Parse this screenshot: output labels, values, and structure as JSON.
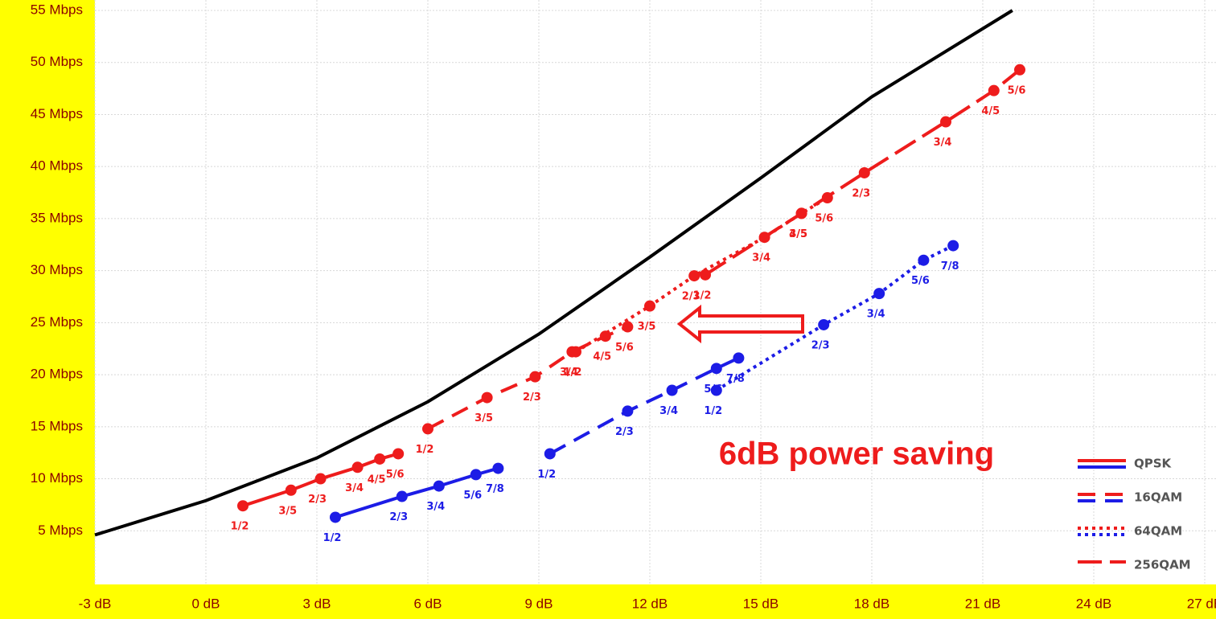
{
  "chart_data": {
    "type": "line",
    "annotation": "6dB power saving",
    "xlim": [
      -3,
      27
    ],
    "ylim": [
      0,
      55
    ],
    "xticks": [
      {
        "value": -3,
        "label": "-3 dB"
      },
      {
        "value": 0,
        "label": "0 dB"
      },
      {
        "value": 3,
        "label": "3 dB"
      },
      {
        "value": 6,
        "label": "6 dB"
      },
      {
        "value": 9,
        "label": "9 dB"
      },
      {
        "value": 12,
        "label": "12 dB"
      },
      {
        "value": 15,
        "label": "15 dB"
      },
      {
        "value": 18,
        "label": "18 dB"
      },
      {
        "value": 21,
        "label": "21 dB"
      },
      {
        "value": 24,
        "label": "24 dB"
      },
      {
        "value": 27,
        "label": "27 dB"
      }
    ],
    "yticks": [
      {
        "value": 5,
        "label": "5 Mbps"
      },
      {
        "value": 10,
        "label": "10 Mbps"
      },
      {
        "value": 15,
        "label": "15 Mbps"
      },
      {
        "value": 20,
        "label": "20 Mbps"
      },
      {
        "value": 25,
        "label": "25 Mbps"
      },
      {
        "value": 30,
        "label": "30 Mbps"
      },
      {
        "value": 35,
        "label": "35 Mbps"
      },
      {
        "value": 40,
        "label": "40 Mbps"
      },
      {
        "value": 45,
        "label": "45 Mbps"
      },
      {
        "value": 50,
        "label": "50 Mbps"
      },
      {
        "value": 55,
        "label": "55 Mbps"
      }
    ],
    "grid": true,
    "legend_position": "lower right",
    "series": [
      {
        "color": "#000000",
        "dash": "solid",
        "markers": false,
        "x": [
          -3,
          0,
          3,
          6,
          9,
          12,
          15,
          18,
          21.8
        ],
        "values": [
          4.6,
          7.9,
          12,
          17.4,
          23.9,
          31.3,
          38.9,
          46.7,
          55
        ]
      },
      {
        "name": "QPSK",
        "color": "#ee1c1c",
        "dash": "solid",
        "markers": true,
        "x": [
          1.0,
          2.3,
          3.1,
          4.1,
          4.7,
          5.2
        ],
        "values": [
          7.4,
          8.9,
          10.0,
          11.1,
          11.9,
          12.4
        ],
        "point_labels": [
          "1/2",
          "3/5",
          "2/3",
          "3/4",
          "4/5",
          "5/6"
        ]
      },
      {
        "name": "QPSK",
        "color": "#1c1ce6",
        "dash": "solid",
        "markers": true,
        "x": [
          3.5,
          5.3,
          6.3,
          7.3,
          7.9
        ],
        "values": [
          6.3,
          8.3,
          9.3,
          10.4,
          11.0
        ],
        "point_labels": [
          "1/2",
          "2/3",
          "3/4",
          "5/6",
          "7/8"
        ]
      },
      {
        "name": "16QAM",
        "color": "#ee1c1c",
        "dash": "dashed",
        "markers": true,
        "x": [
          6.0,
          7.6,
          8.9,
          9.9,
          10.8,
          11.4
        ],
        "values": [
          14.8,
          17.8,
          19.8,
          22.2,
          23.7,
          24.6
        ],
        "point_labels": [
          "1/2",
          "3/5",
          "2/3",
          "3/4",
          "4/5",
          "5/6"
        ]
      },
      {
        "name": "16QAM",
        "color": "#1c1ce6",
        "dash": "dashed",
        "markers": true,
        "x": [
          9.3,
          11.4,
          12.6,
          13.8,
          14.4
        ],
        "values": [
          12.4,
          16.5,
          18.5,
          20.6,
          21.6
        ],
        "point_labels": [
          "1/2",
          "2/3",
          "3/4",
          "5/6",
          "7/8"
        ]
      },
      {
        "name": "64QAM",
        "color": "#ee1c1c",
        "dash": "dotted",
        "markers": true,
        "x": [
          10.0,
          12.0,
          13.2,
          15.1,
          16.1,
          16.8
        ],
        "values": [
          22.2,
          26.6,
          29.5,
          33.2,
          35.5,
          37.0
        ],
        "point_labels": [
          "1/2",
          "3/5",
          "2/3",
          "3/4",
          "4/5",
          "5/6"
        ]
      },
      {
        "name": "64QAM",
        "color": "#1c1ce6",
        "dash": "dotted",
        "markers": true,
        "x": [
          13.8,
          16.7,
          18.2,
          19.4,
          20.2
        ],
        "values": [
          18.5,
          24.8,
          27.8,
          31.0,
          32.4
        ],
        "point_labels": [
          "1/2",
          "2/3",
          "3/4",
          "5/6",
          "7/8"
        ]
      },
      {
        "name": "256QAM",
        "color": "#ee1c1c",
        "dash": "longdash",
        "markers": true,
        "x": [
          13.5,
          16.1,
          17.8,
          20.0,
          21.3,
          22.0
        ],
        "values": [
          29.6,
          35.5,
          39.4,
          44.3,
          47.3,
          49.3
        ],
        "point_labels": [
          "1/2",
          "3/5",
          "2/3",
          "3/4",
          "4/5",
          "5/6"
        ]
      }
    ]
  }
}
